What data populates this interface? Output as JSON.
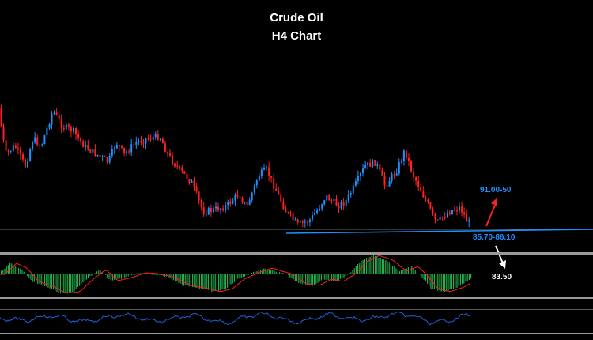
{
  "chart_data": {
    "type": "candlestick",
    "title": "Crude Oil",
    "subtitle": "H4 Chart",
    "grid": false,
    "colors": {
      "background": "#000000",
      "bull_candle": "#1e90ff",
      "bear_candle": "#ff2020",
      "support_line": "#1e90ff",
      "up_arrow": "#ff2020",
      "down_arrow": "#ffffff",
      "macd_histogram": "#22b14c",
      "macd_signal": "#ff2020",
      "rsi_line": "#1e5fd6",
      "panel_separator": "#9a9a9a",
      "target_up_label": "#1e90ff",
      "support_label": "#1e90ff",
      "target_down_label": "#ffffff"
    },
    "annotations": {
      "target_up": "91.00-50",
      "support_zone": "85.70-86.10",
      "target_down": "83.50"
    }
  }
}
